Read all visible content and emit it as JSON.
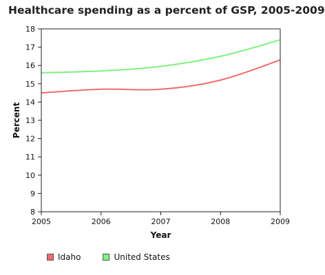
{
  "chart_data": {
    "type": "line",
    "title": "Healthcare spending as a percent of GSP, 2005-2009",
    "xlabel": "Year",
    "ylabel": "Percent",
    "x": [
      2005,
      2006,
      2007,
      2008,
      2009
    ],
    "xlim": [
      2005,
      2009
    ],
    "ylim": [
      8,
      18
    ],
    "yticks": [
      8,
      9,
      10,
      11,
      12,
      13,
      14,
      15,
      16,
      17,
      18
    ],
    "xticks": [
      2005,
      2006,
      2007,
      2008,
      2009
    ],
    "grid": false,
    "legend_position": "bottom",
    "series": [
      {
        "name": "Idaho",
        "color": "#f06b6b",
        "values": [
          14.5,
          14.7,
          14.7,
          15.2,
          16.3
        ]
      },
      {
        "name": "United States",
        "color": "#7ef27e",
        "values": [
          15.6,
          15.7,
          15.95,
          16.5,
          17.4
        ]
      }
    ]
  }
}
